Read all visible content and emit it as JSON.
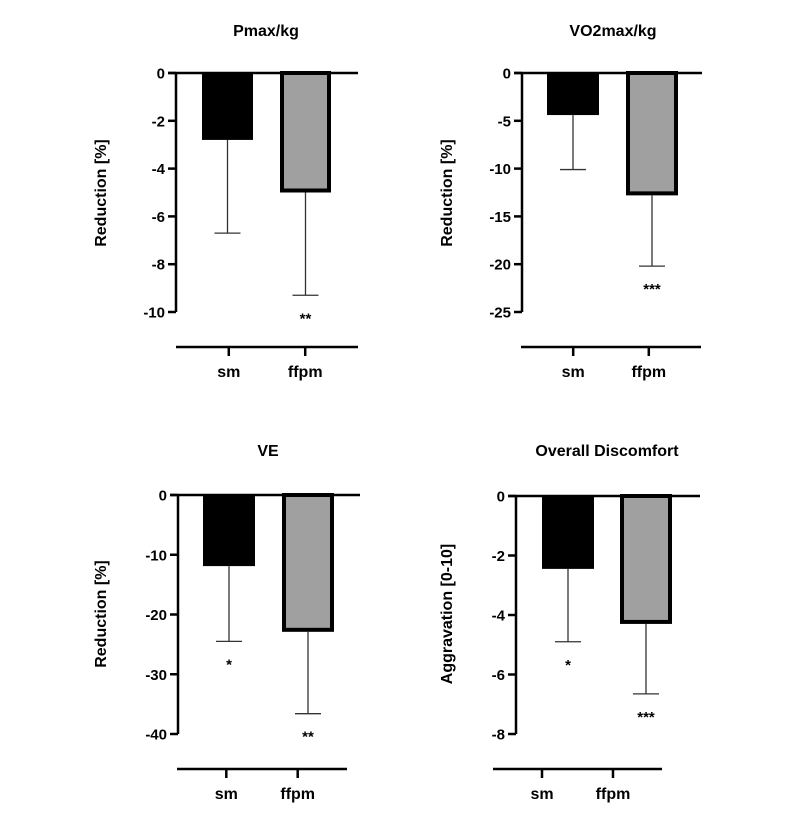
{
  "chart_data": [
    {
      "type": "bar",
      "title": "Pmax/kg",
      "xlabel": "",
      "ylabel": "Reduction [%]",
      "categories": [
        "sm",
        "ffpm"
      ],
      "values": [
        -2.8,
        -5.0
      ],
      "error_bars": [
        -6.7,
        -9.3
      ],
      "error_sd": [
        3.9,
        4.3
      ],
      "significance": [
        "",
        "**"
      ],
      "ylim": [
        -10,
        0
      ],
      "yticks": [
        0,
        -2,
        -4,
        -6,
        -8,
        -10
      ],
      "ytick_labels": [
        "0",
        "-2",
        "-4",
        "-6",
        "-8",
        "-10"
      ],
      "grid": false
    },
    {
      "type": "bar",
      "title": "VO2max/kg",
      "xlabel": "",
      "ylabel": "Reduction [%]",
      "categories": [
        "sm",
        "ffpm"
      ],
      "values": [
        -4.4,
        -12.8
      ],
      "error_bars": [
        -10.1,
        -20.2
      ],
      "error_sd": [
        5.7,
        7.4
      ],
      "significance": [
        "",
        "***"
      ],
      "ylim": [
        -25,
        0
      ],
      "yticks": [
        0,
        -5,
        -10,
        -15,
        -20,
        -25
      ],
      "ytick_labels": [
        "0",
        "-5",
        "-10",
        "-15",
        "-20",
        "-25"
      ],
      "grid": false
    },
    {
      "type": "bar",
      "title": "VE",
      "xlabel": "",
      "ylabel": "Reduction [%]",
      "categories": [
        "sm",
        "ffpm"
      ],
      "values": [
        -11.9,
        -22.9
      ],
      "error_bars": [
        -24.5,
        -36.6
      ],
      "error_sd": [
        12.6,
        13.7
      ],
      "significance": [
        "*",
        "**"
      ],
      "ylim": [
        -40,
        0
      ],
      "yticks": [
        0,
        -10,
        -20,
        -30,
        -40
      ],
      "ytick_labels": [
        "0",
        "-10",
        "-20",
        "-30",
        "-40"
      ],
      "grid": false
    },
    {
      "type": "bar",
      "title": "Overall Discomfort",
      "xlabel": "",
      "ylabel": "Aggravation [0-10]",
      "categories": [
        "sm",
        "ffpm"
      ],
      "values": [
        -2.45,
        -4.3
      ],
      "error_bars": [
        -4.9,
        -6.65
      ],
      "error_sd": [
        2.45,
        2.35
      ],
      "significance": [
        "*",
        "***"
      ],
      "ylim": [
        -8,
        0
      ],
      "yticks": [
        0,
        -2,
        -4,
        -6,
        -8
      ],
      "ytick_labels": [
        "0",
        "-2",
        "-4",
        "-6",
        "-8"
      ],
      "grid": false
    }
  ],
  "colors": {
    "sm_fill": "#000000",
    "ffpm_fill": "#a0a0a0",
    "ffpm_border": "#000000",
    "axis": "#000000",
    "error_bar": "#333333"
  }
}
